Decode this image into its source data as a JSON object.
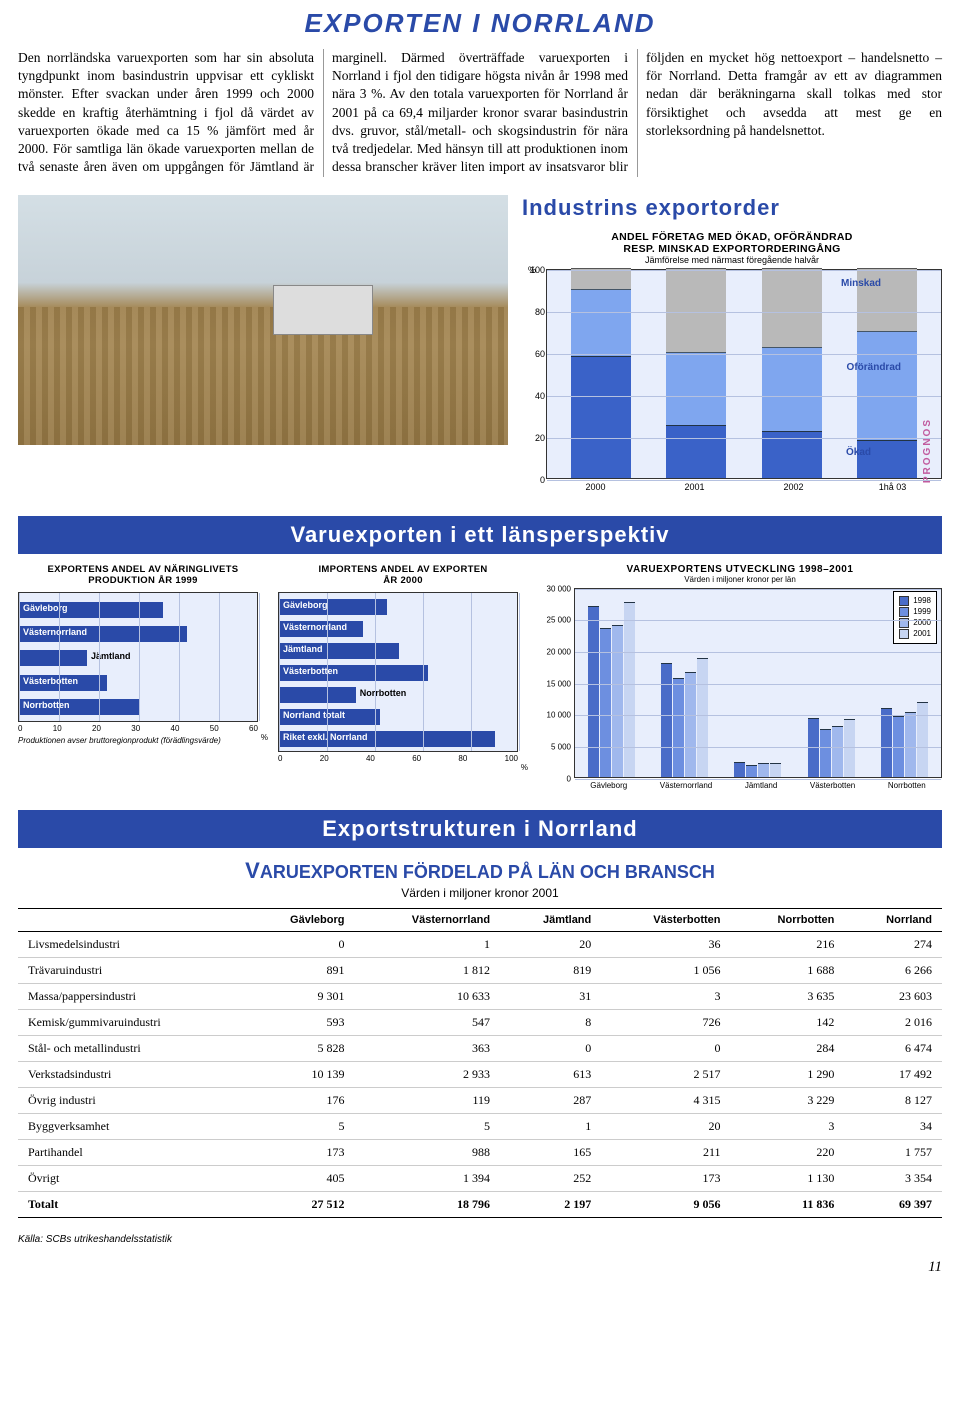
{
  "page_title": "EXPORTEN I NORRLAND",
  "intro_text": "Den norrländska varuexporten som har sin absoluta tyngdpunkt inom basindustrin uppvisar ett cykliskt mönster. Efter svackan under åren 1999 och 2000 skedde en kraftig återhämtning i fjol då värdet av varuexporten ökade med ca 15 % jämfört med år 2000. För samtliga län ökade varuexporten mellan de två senaste åren även om uppgången för Jämtland är marginell. Därmed överträffade varuexporten i Norrland i fjol den tidigare högsta nivån år 1998 med nära 3 %. Av den totala varuexporten för Norrland år 2001 på ca 69,4 miljarder kronor svarar basindustrin dvs. gruvor, stål/metall- och skogsindustrin för nära två tredjedelar. Med hänsyn till att produktionen inom dessa branscher kräver liten import av insatsvaror blir följden en mycket hög nettoexport – handelsnetto – för Norrland. Detta framgår av ett av diagrammen nedan där beräkningarna skall tolkas med stor försiktighet och avsedda att mest ge en storleksordning på handelsnettot.",
  "exportorder": {
    "heading": "Industrins exportorder",
    "subtitle1": "ANDEL FÖRETAG MED ÖKAD, OFÖRÄNDRAD",
    "subtitle2": "RESP. MINSKAD EXPORTORDERINGÅNG",
    "subtitle3": "Jämförelse med närmast föregående halvår",
    "yticks": [
      0,
      20,
      40,
      60,
      80,
      100
    ],
    "xlabels": [
      "2000",
      "2001",
      "2002",
      "1hå 03"
    ],
    "legend": {
      "minskad": "Minskad",
      "oforandrad": "Oförändrad",
      "okad": "Ökad"
    },
    "prognos": "PROGNOS",
    "series": [
      {
        "okad": 58,
        "oforandrad": 32,
        "minskad": 10
      },
      {
        "okad": 25,
        "oforandrad": 35,
        "minskad": 40
      },
      {
        "okad": 22,
        "oforandrad": 40,
        "minskad": 38
      },
      {
        "okad": 18,
        "oforandrad": 52,
        "minskad": 30
      }
    ],
    "colors": {
      "okad": "#3a62c8",
      "oforandrad": "#7fa6ef",
      "minskad": "#b9b9b9"
    },
    "bg": "#e8eefc"
  },
  "banner2": "Varuexporten i ett länsperspektiv",
  "chart_export_andel": {
    "title1": "EXPORTENS ANDEL AV NÄRINGLIVETS",
    "title2": "PRODUKTION ÅR 1999",
    "bars": [
      {
        "label": "Gävleborg",
        "value": 36
      },
      {
        "label": "Västernorrland",
        "value": 42
      },
      {
        "label": "Jämtland",
        "value": 17
      },
      {
        "label": "Västerbotten",
        "value": 22
      },
      {
        "label": "Norrbotten",
        "value": 30
      }
    ],
    "xmax": 60,
    "xticks": [
      0,
      10,
      20,
      30,
      40,
      50,
      60
    ],
    "note": "Produktionen avser bruttoregionprodukt (förädlingsvärde)",
    "bar_color": "#2a4aa8",
    "bg": "#e8eefc"
  },
  "chart_import_andel": {
    "title1": "IMPORTENS ANDEL AV EXPORTEN",
    "title2": "ÅR 2000",
    "bars": [
      {
        "label": "Gävleborg",
        "value": 45
      },
      {
        "label": "Västernorrland",
        "value": 35
      },
      {
        "label": "Jämtland",
        "value": 50
      },
      {
        "label": "Västerbotten",
        "value": 62
      },
      {
        "label": "Norrbotten",
        "value": 32
      },
      {
        "label": "Norrland totalt",
        "value": 42
      },
      {
        "label": "Riket exkl. Norrland",
        "value": 90
      }
    ],
    "xmax": 100,
    "xticks": [
      0,
      20,
      40,
      60,
      80,
      100
    ],
    "bar_color": "#2a4aa8",
    "bg": "#e8eefc"
  },
  "chart_utveckling": {
    "title": "VARUEXPORTENS UTVECKLING 1998–2001",
    "subtitle": "Värden i miljoner kronor per län",
    "ymax": 30000,
    "yticks": [
      0,
      5000,
      10000,
      15000,
      20000,
      25000,
      30000
    ],
    "xlabels": [
      "Gävleborg",
      "Västernorrland",
      "Jämtland",
      "Västerbotten",
      "Norrbotten"
    ],
    "years": [
      "1998",
      "1999",
      "2000",
      "2001"
    ],
    "colors": [
      "#4a6cc8",
      "#6d8fe0",
      "#a0b8ed",
      "#c7d5f2"
    ],
    "data": [
      [
        27000,
        23500,
        24000,
        27512
      ],
      [
        18000,
        15500,
        16500,
        18796
      ],
      [
        2300,
        1900,
        2150,
        2197
      ],
      [
        9200,
        7500,
        8000,
        9056
      ],
      [
        10800,
        9500,
        10200,
        11836
      ]
    ],
    "bg": "#e8eefc"
  },
  "banner3": "Exportstrukturen i Norrland",
  "table": {
    "title_caps": "V",
    "title_rest": "ARUEXPORTEN FÖRDELAD PÅ LÄN OCH BRANSCH",
    "subtitle": "Värden i miljoner kronor 2001",
    "columns": [
      "",
      "Gävleborg",
      "Västernorrland",
      "Jämtland",
      "Västerbotten",
      "Norrbotten",
      "Norrland"
    ],
    "rows": [
      [
        "Livsmedelsindustri",
        "0",
        "1",
        "20",
        "36",
        "216",
        "274"
      ],
      [
        "Trävaruindustri",
        "891",
        "1 812",
        "819",
        "1 056",
        "1 688",
        "6 266"
      ],
      [
        "Massa/pappersindustri",
        "9 301",
        "10 633",
        "31",
        "3",
        "3 635",
        "23 603"
      ],
      [
        "Kemisk/gummivaruindustri",
        "593",
        "547",
        "8",
        "726",
        "142",
        "2 016"
      ],
      [
        "Stål- och metallindustri",
        "5 828",
        "363",
        "0",
        "0",
        "284",
        "6 474"
      ],
      [
        "Verkstadsindustri",
        "10 139",
        "2 933",
        "613",
        "2 517",
        "1 290",
        "17 492"
      ],
      [
        "Övrig industri",
        "176",
        "119",
        "287",
        "4 315",
        "3 229",
        "8 127"
      ],
      [
        "Byggverksamhet",
        "5",
        "5",
        "1",
        "20",
        "3",
        "34"
      ],
      [
        "Partihandel",
        "173",
        "988",
        "165",
        "211",
        "220",
        "1 757"
      ],
      [
        "Övrigt",
        "405",
        "1 394",
        "252",
        "173",
        "1 130",
        "3 354"
      ]
    ],
    "total": [
      "Totalt",
      "27 512",
      "18 796",
      "2 197",
      "9 056",
      "11 836",
      "69 397"
    ]
  },
  "source": "Källa: SCBs utrikeshandelsstatistik",
  "page_number": "11"
}
